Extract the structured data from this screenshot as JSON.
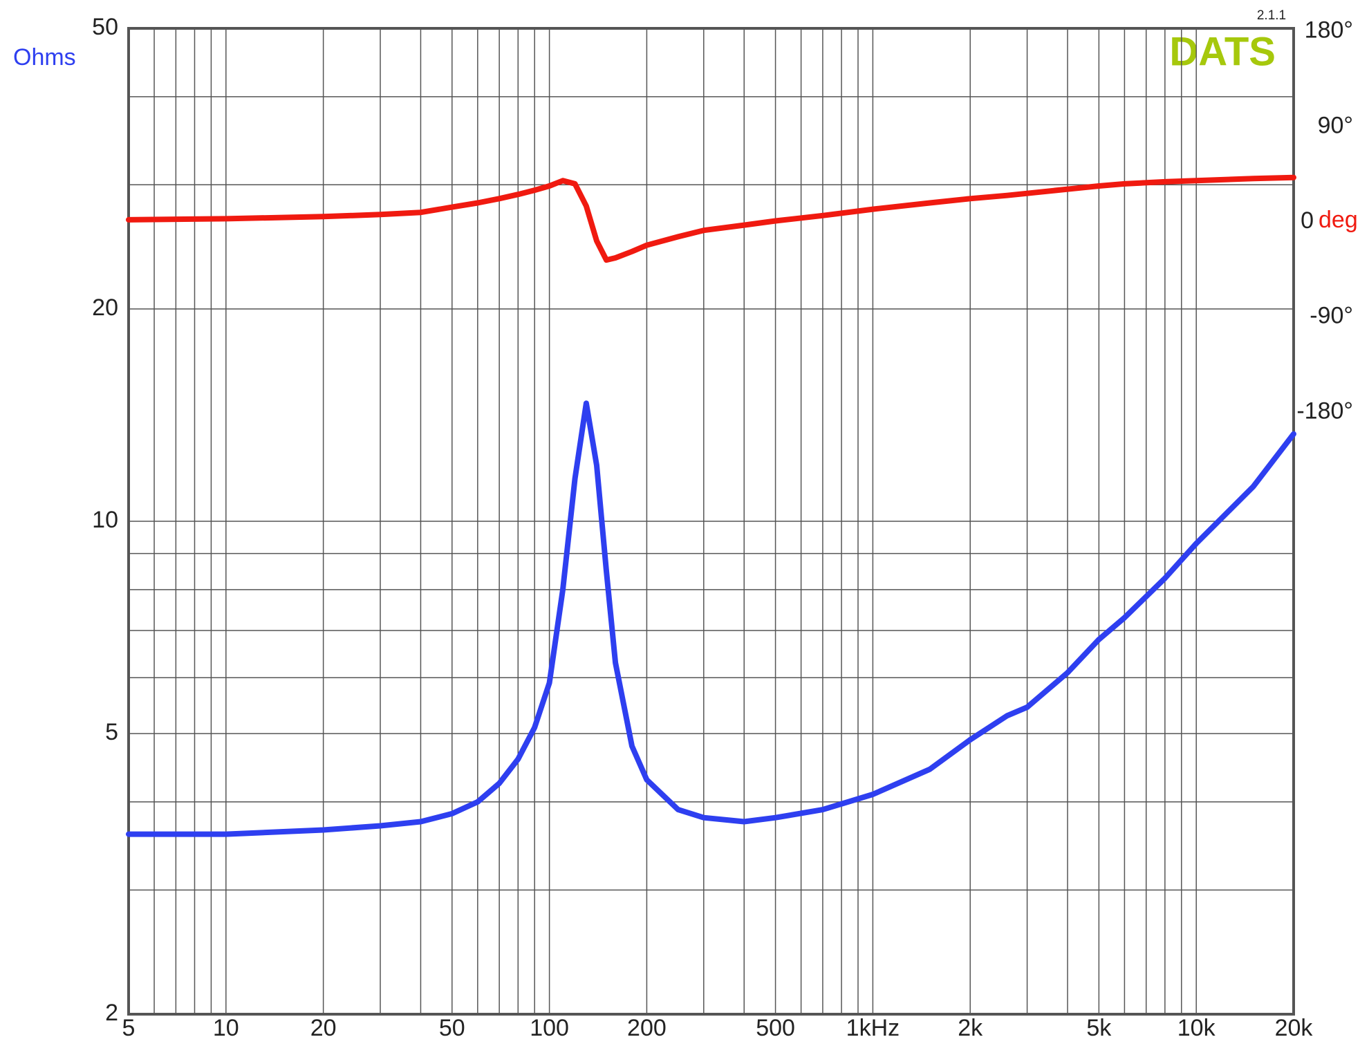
{
  "chart_data": {
    "type": "line",
    "xscale": "log",
    "yscale": "log",
    "y_label": "Ohms",
    "y2_label": "deg",
    "logo": "DATS",
    "version": "2.1.1",
    "grid": true,
    "xlim": [
      5,
      20000
    ],
    "xticks": [
      5,
      10,
      20,
      50,
      100,
      200,
      500,
      {
        "value": 1000,
        "label": "1kHz"
      },
      {
        "value": 2000,
        "label": "2k"
      },
      {
        "value": 5000,
        "label": "5k"
      },
      {
        "value": 10000,
        "label": "10k"
      },
      {
        "value": 20000,
        "label": "20k"
      }
    ],
    "xminor": [
      6,
      7,
      8,
      9,
      30,
      40,
      60,
      70,
      80,
      90,
      300,
      400,
      600,
      700,
      800,
      900,
      3000,
      4000,
      6000,
      7000,
      8000,
      9000
    ],
    "ylim": [
      2,
      50
    ],
    "yticks": [
      2,
      5,
      10,
      20,
      50
    ],
    "yminor": [
      3,
      4,
      6,
      7,
      8,
      9,
      30,
      40
    ],
    "y2lim": [
      -749,
      183
    ],
    "y2ticks": [
      {
        "value": 180,
        "label": "180°"
      },
      {
        "value": 90,
        "label": "90°"
      },
      0,
      {
        "value": -90,
        "label": "-90°"
      },
      {
        "value": -180,
        "label": "-180°"
      }
    ],
    "x": [
      5,
      10,
      20,
      30,
      40,
      50,
      60,
      70,
      80,
      90,
      100,
      110,
      120,
      130,
      140,
      150,
      160,
      180,
      200,
      250,
      300,
      400,
      500,
      700,
      1000,
      1500,
      2000,
      2600,
      3000,
      4000,
      5000,
      6000,
      8000,
      10000,
      15000,
      20000
    ],
    "series": [
      {
        "color": "#2e3ff0",
        "values": [
          3.6,
          3.6,
          3.65,
          3.7,
          3.75,
          3.85,
          4.0,
          4.25,
          4.6,
          5.1,
          5.9,
          8.0,
          11.5,
          14.7,
          12.0,
          8.5,
          6.3,
          4.8,
          4.3,
          3.9,
          3.8,
          3.75,
          3.8,
          3.9,
          4.1,
          4.45,
          4.9,
          5.3,
          5.45,
          6.1,
          6.8,
          7.3,
          8.3,
          9.3,
          11.2,
          13.3
        ]
      },
      {
        "color": "#f01a10",
        "axis": "y2",
        "values": [
          2,
          3,
          5,
          7,
          9,
          14,
          18,
          22,
          26,
          30,
          34,
          39,
          36,
          15,
          -18,
          -36,
          -34,
          -28,
          -22,
          -14,
          -8,
          -3,
          1,
          6,
          12,
          18,
          22,
          25,
          27,
          31,
          34,
          36,
          38,
          39,
          41,
          42
        ]
      }
    ]
  }
}
